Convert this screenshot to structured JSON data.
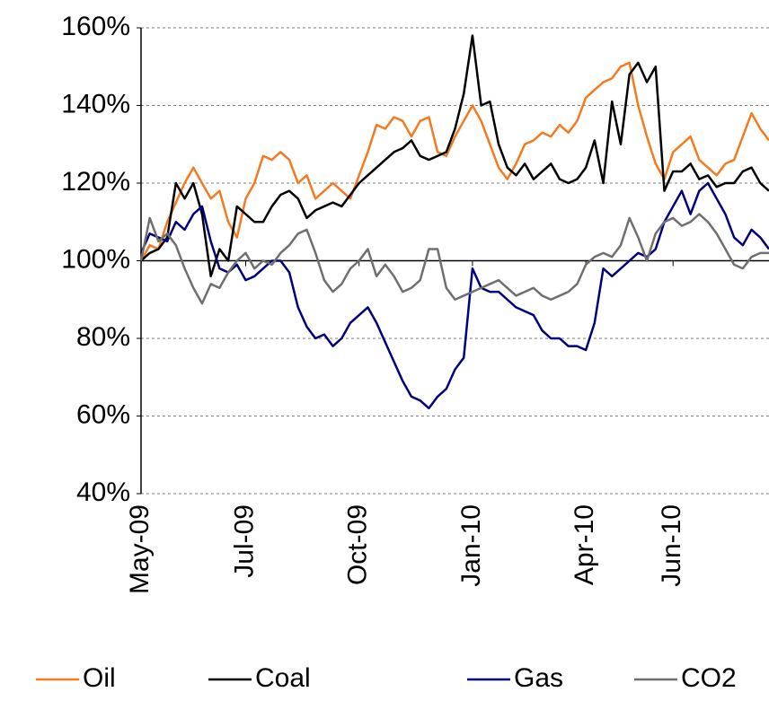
{
  "chart_data": {
    "type": "line",
    "categories": [
      "May-09",
      null,
      null,
      null,
      null,
      null,
      null,
      null,
      null,
      null,
      null,
      null,
      "Jul-09",
      null,
      null,
      null,
      null,
      null,
      null,
      null,
      null,
      null,
      null,
      null,
      null,
      "Oct-09",
      null,
      null,
      null,
      null,
      null,
      null,
      null,
      null,
      null,
      null,
      null,
      null,
      "Jan-10",
      null,
      null,
      null,
      null,
      null,
      null,
      null,
      null,
      null,
      null,
      null,
      null,
      "Apr-10",
      null,
      null,
      null,
      null,
      null,
      null,
      null,
      null,
      null,
      "Jun-10",
      null,
      null,
      null,
      null,
      null,
      null,
      null,
      null,
      null,
      null,
      null
    ],
    "series": [
      {
        "name": "Oil",
        "color": "#f47a1f",
        "values": [
          100,
          104,
          103,
          110,
          115,
          120,
          124,
          120,
          116,
          118,
          110,
          106,
          116,
          120,
          127,
          126,
          128,
          126,
          120,
          122,
          116,
          118,
          120,
          118,
          116,
          122,
          128,
          135,
          134,
          137,
          136,
          132,
          136,
          137,
          128,
          127,
          132,
          136,
          140,
          136,
          130,
          124,
          121,
          125,
          130,
          131,
          133,
          132,
          135,
          133,
          136,
          142,
          144,
          146,
          147,
          150,
          151,
          140,
          132,
          125,
          121,
          128,
          130,
          132,
          126,
          124,
          122,
          125,
          126,
          132,
          138,
          134,
          131
        ]
      },
      {
        "name": "Coal",
        "color": "#000000",
        "values": [
          100,
          102,
          103,
          106,
          120,
          116,
          120,
          112,
          96,
          103,
          100,
          114,
          112,
          110,
          110,
          114,
          117,
          118,
          116,
          111,
          113,
          114,
          115,
          114,
          117,
          120,
          122,
          124,
          126,
          128,
          129,
          131,
          127,
          126,
          127,
          128,
          134,
          143,
          158,
          140,
          141,
          130,
          124,
          122,
          125,
          121,
          123,
          125,
          121,
          120,
          121,
          124,
          131,
          120,
          141,
          130,
          148,
          151,
          146,
          150,
          118,
          123,
          123,
          125,
          121,
          122,
          119,
          120,
          120,
          123,
          124,
          120,
          118
        ]
      },
      {
        "name": "Gas",
        "color": "#00007f",
        "values": [
          102,
          107,
          106,
          105,
          110,
          108,
          112,
          114,
          105,
          98,
          97,
          99,
          95,
          96,
          98,
          100,
          100,
          97,
          88,
          83,
          80,
          81,
          78,
          80,
          84,
          86,
          88,
          84,
          79,
          74,
          69,
          65,
          64,
          62,
          65,
          67,
          72,
          75,
          98,
          93,
          92,
          92,
          90,
          88,
          87,
          86,
          82,
          80,
          80,
          78,
          78,
          77,
          84,
          98,
          96,
          98,
          100,
          102,
          101,
          103,
          110,
          114,
          118,
          112,
          118,
          120,
          116,
          112,
          106,
          104,
          108,
          106,
          103
        ]
      },
      {
        "name": "CO2",
        "color": "#6f6f6f",
        "values": [
          100,
          111,
          105,
          107,
          104,
          98,
          93,
          89,
          94,
          93,
          97,
          100,
          102,
          98,
          100,
          99,
          102,
          104,
          107,
          108,
          102,
          95,
          92,
          94,
          98,
          100,
          103,
          96,
          99,
          96,
          92,
          93,
          95,
          103,
          103,
          93,
          90,
          91,
          92,
          93,
          94,
          95,
          93,
          91,
          92,
          93,
          91,
          90,
          91,
          92,
          94,
          99,
          101,
          102,
          101,
          104,
          111,
          106,
          100,
          107,
          110,
          111,
          109,
          110,
          112,
          110,
          107,
          103,
          99,
          98,
          101,
          102,
          102
        ]
      }
    ],
    "ylim": [
      40,
      160
    ],
    "yticks": [
      {
        "value": 40,
        "label": "40%"
      },
      {
        "value": 60,
        "label": "60%"
      },
      {
        "value": 80,
        "label": "80%"
      },
      {
        "value": 100,
        "label": "100%"
      },
      {
        "value": 120,
        "label": "120%"
      },
      {
        "value": 140,
        "label": "140%"
      },
      {
        "value": 160,
        "label": "160%"
      }
    ],
    "x_axis_crosses": 100,
    "grid": true,
    "legend": "bottom"
  }
}
